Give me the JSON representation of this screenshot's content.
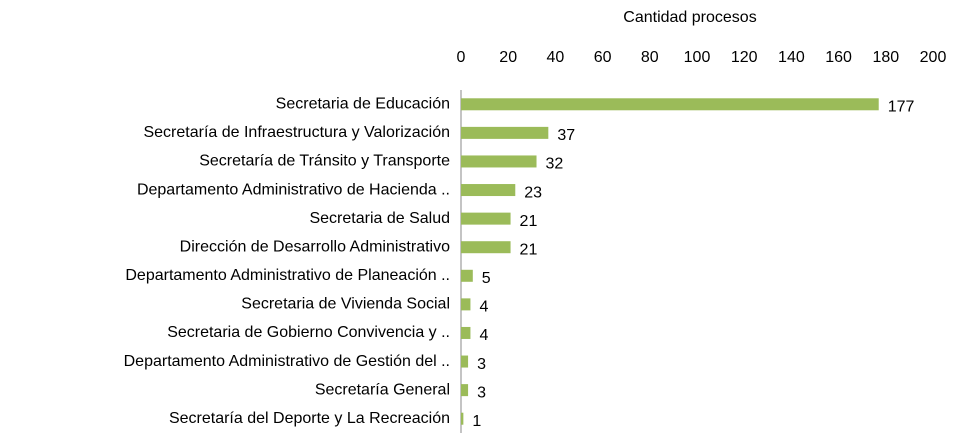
{
  "chart_data": {
    "type": "bar",
    "orientation": "horizontal",
    "x_label": "Cantidad procesos",
    "categories": [
      "Secretaria de Educación",
      "Secretaría de Infraestructura y Valorización",
      "Secretaría de Tránsito y Transporte",
      "Departamento Administrativo de Hacienda ..",
      "Secretaria de Salud",
      "Dirección de Desarrollo Administrativo",
      "Departamento Administrativo de Planeación ..",
      "Secretaria de Vivienda Social",
      "Secretaria de Gobierno Convivencia y ..",
      "Departamento Administrativo de Gestión del ..",
      "Secretaría General",
      "Secretaría del Deporte y La Recreación"
    ],
    "values": [
      177,
      37,
      32,
      23,
      21,
      21,
      5,
      4,
      4,
      3,
      3,
      1
    ],
    "color": "#9bbb59",
    "xlim": [
      0,
      200
    ],
    "xticks": [
      0,
      20,
      40,
      60,
      80,
      100,
      120,
      140,
      160,
      180,
      200
    ],
    "grid": false
  }
}
